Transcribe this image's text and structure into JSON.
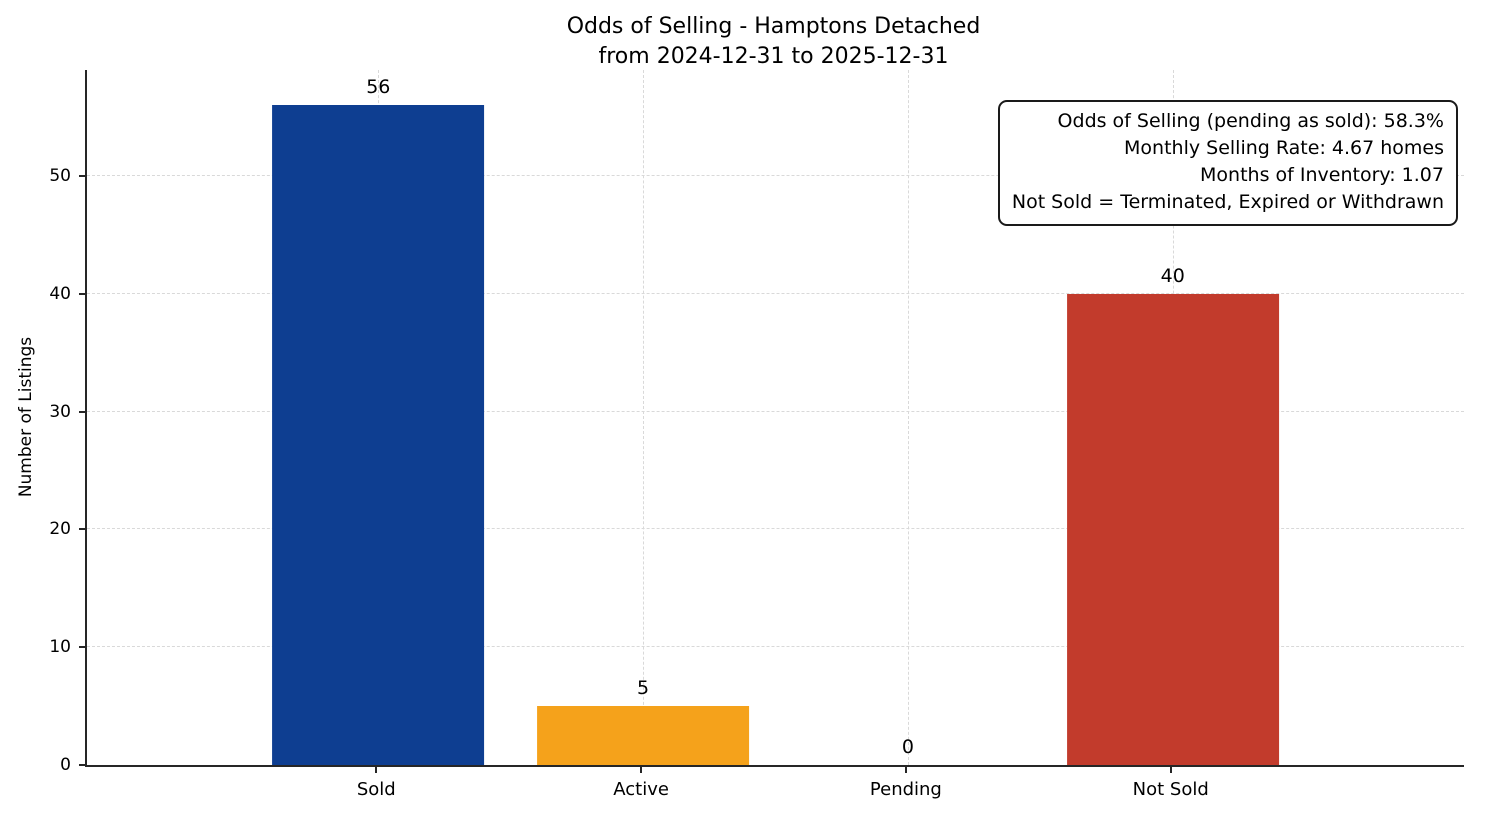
{
  "chart_data": {
    "type": "bar",
    "title": "Odds of Selling - Hamptons Detached",
    "subtitle": "from 2024-12-31 to 2025-12-31",
    "categories": [
      "Sold",
      "Active",
      "Pending",
      "Not Sold"
    ],
    "values": [
      56,
      5,
      0,
      40
    ],
    "bar_colors": [
      "#0e3e91",
      "#f5a21b",
      null,
      "#c23b2c"
    ],
    "xlabel": "",
    "ylabel": "Number of Listings",
    "ylim": [
      0,
      59
    ],
    "yticks": [
      0,
      10,
      20,
      30,
      40,
      50
    ],
    "grid": "dashed horizontal and vertical",
    "legend": "none",
    "annotation_box": {
      "lines": [
        "Odds of Selling (pending as sold): 58.3%",
        "Monthly Selling Rate: 4.67 homes",
        "Months of Inventory: 1.07",
        "Not Sold = Terminated, Expired or Withdrawn"
      ]
    }
  }
}
